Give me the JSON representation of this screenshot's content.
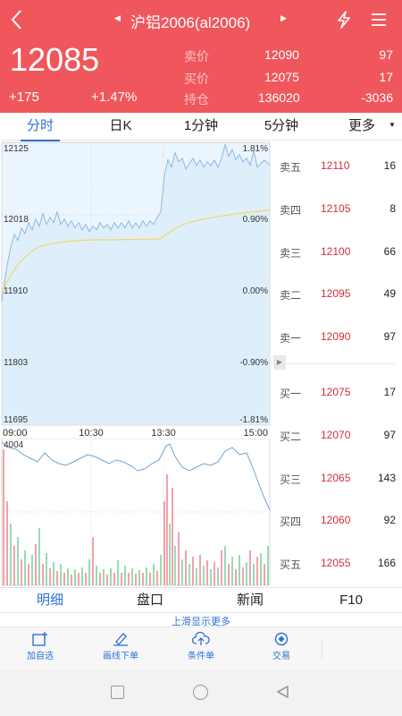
{
  "header": {
    "title": "沪铝2006(al2006)",
    "price": "12085",
    "change": "+175",
    "change_pct": "+1.47%",
    "quotes": [
      {
        "label": "卖价",
        "value": "12090",
        "extra": "97"
      },
      {
        "label": "买价",
        "value": "12075",
        "extra": "17"
      },
      {
        "label": "持仓",
        "value": "136020",
        "extra": "-3036"
      }
    ]
  },
  "tabs": [
    "分时",
    "日K",
    "1分钟",
    "5分钟",
    "更多"
  ],
  "chart": {
    "y_left": [
      "12125",
      "12018",
      "11910",
      "11803",
      "11695"
    ],
    "y_right": [
      "1.81%",
      "0.90%",
      "0.00%",
      "-0.90%",
      "-1.81%"
    ],
    "x_labels": [
      "09:00",
      "10:30",
      "13:30",
      "15:00"
    ],
    "volume_max": "4004"
  },
  "order_book": [
    {
      "label": "卖五",
      "price": "12110",
      "vol": "16"
    },
    {
      "label": "卖四",
      "price": "12105",
      "vol": "8"
    },
    {
      "label": "卖三",
      "price": "12100",
      "vol": "66"
    },
    {
      "label": "卖二",
      "price": "12095",
      "vol": "49"
    },
    {
      "label": "卖一",
      "price": "12090",
      "vol": "97"
    },
    {
      "label": "买一",
      "price": "12075",
      "vol": "17"
    },
    {
      "label": "买二",
      "price": "12070",
      "vol": "97"
    },
    {
      "label": "买三",
      "price": "12065",
      "vol": "143"
    },
    {
      "label": "买四",
      "price": "12060",
      "vol": "92"
    },
    {
      "label": "买五",
      "price": "12055",
      "vol": "166"
    }
  ],
  "bottom_tabs": [
    "明细",
    "盘口",
    "新闻",
    "F10"
  ],
  "slide_hint": "上滑显示更多",
  "toolbar": [
    "加自选",
    "画线下单",
    "条件单",
    "交易"
  ],
  "colors": {
    "header_bg": "#f0575c",
    "accent": "#2f6fd6",
    "up": "#d0303a"
  }
}
